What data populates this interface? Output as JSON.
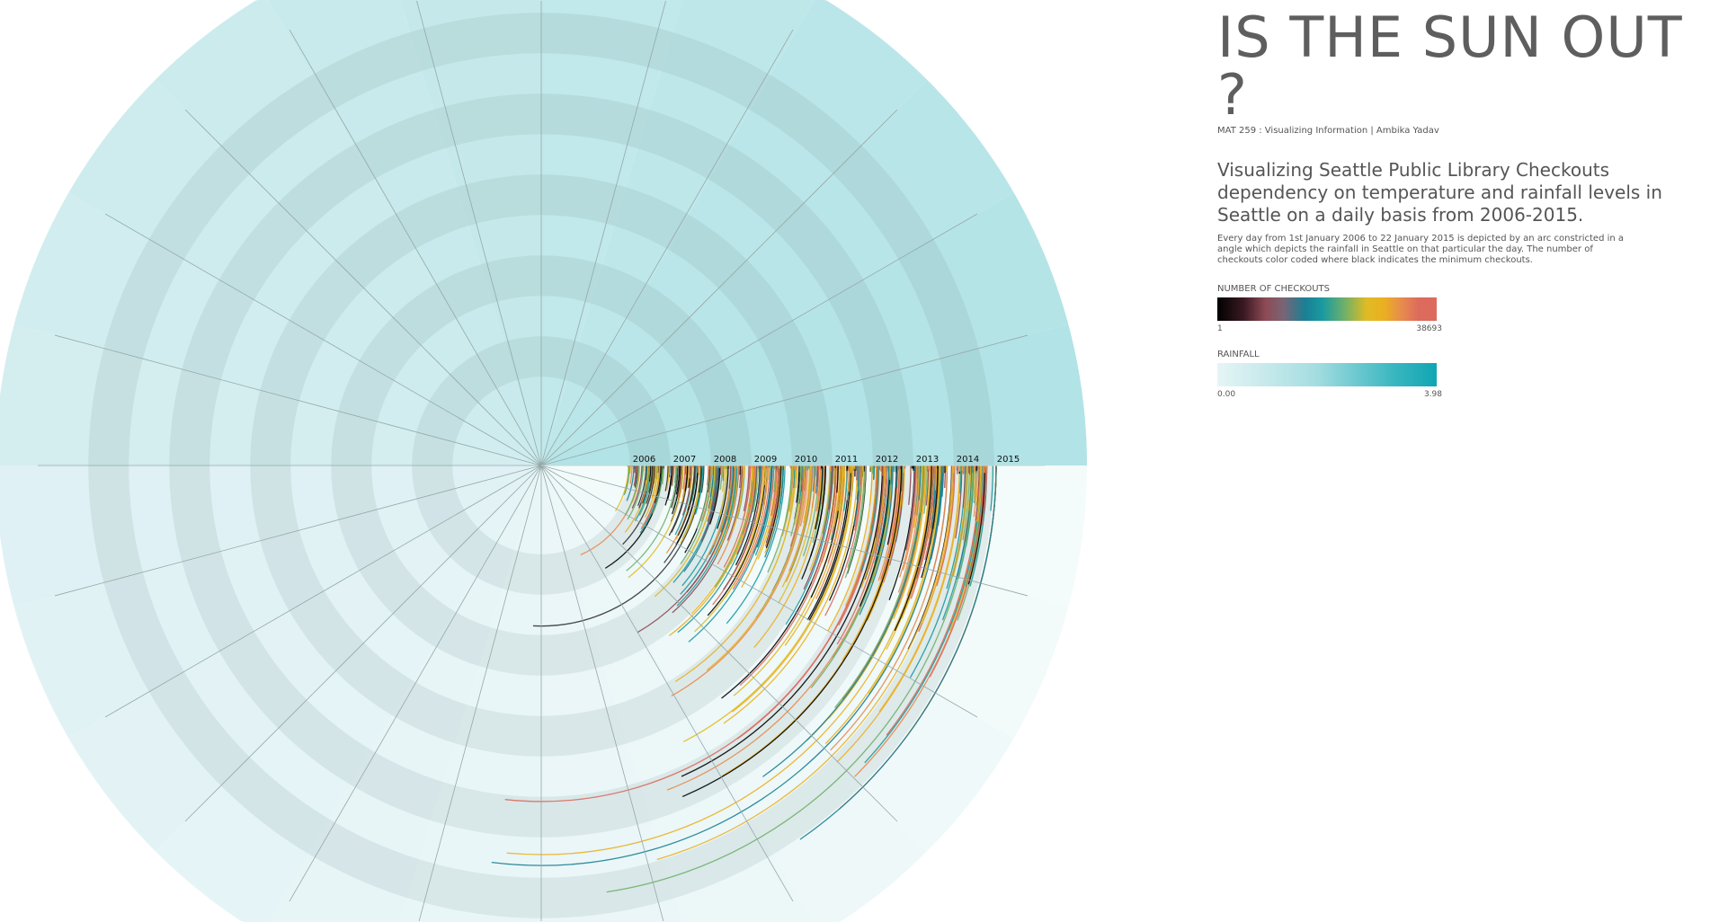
{
  "header": {
    "title": "IS THE SUN OUT ?",
    "credit": "MAT 259 : Visualizing Information | Ambika Yadav",
    "subtitle": "Visualizing Seattle Public Library Checkouts dependency on temperature and rainfall levels in Seattle on a daily basis from 2006-2015.",
    "description": "Every day from 1st January 2006 to 22 January 2015 is depicted by an arc constricted in a angle which depicts the rainfall in Seattle on that particular the day. The number of checkouts color coded where black indicates the minimum checkouts."
  },
  "legends": {
    "checkouts": {
      "title": "NUMBER OF CHECKOUTS",
      "min": "1",
      "max": "38693",
      "colors": [
        "#000000",
        "#8e4a55",
        "#1b7f94",
        "#eab021",
        "#dc6a5d"
      ]
    },
    "rainfall": {
      "title": "RAINFALL",
      "min": "0.00",
      "max": "3.98",
      "colors": [
        "#e6f5f6",
        "#0fa6b3"
      ]
    }
  },
  "chart_data": {
    "type": "radial-arc",
    "years": [
      "2006",
      "2007",
      "2008",
      "2009",
      "2010",
      "2011",
      "2012",
      "2013",
      "2014",
      "2015"
    ],
    "date_range": [
      "1st January 2006",
      "22 January 2015"
    ],
    "arc_angle_encodes": "rainfall",
    "arc_color_encodes": "number of checkouts",
    "checkouts_range": [
      1,
      38693
    ],
    "rainfall_range": [
      0.0,
      3.98
    ],
    "spokes": 24
  }
}
